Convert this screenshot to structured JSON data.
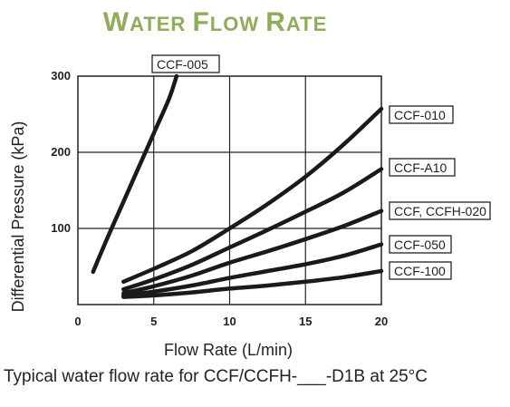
{
  "chart_data": {
    "type": "line",
    "title": "Water Flow Rate",
    "xlabel": "Flow Rate (L/min)",
    "ylabel": "Differential Pressure (kPa)",
    "xlim": [
      0,
      20
    ],
    "ylim": [
      0,
      300
    ],
    "x_ticks": [
      "0",
      "5",
      "10",
      "15",
      "20"
    ],
    "y_ticks": [
      "100",
      "200",
      "300"
    ],
    "grid": true,
    "series": [
      {
        "name": "CCF-005",
        "x": [
          1,
          2,
          3,
          4,
          5,
          6,
          6.5
        ],
        "y": [
          43,
          90,
          135,
          180,
          225,
          270,
          300
        ]
      },
      {
        "name": "CCF-010",
        "x": [
          3,
          5,
          7.5,
          10,
          12.5,
          15,
          17.5,
          20
        ],
        "y": [
          30,
          47,
          70,
          100,
          132,
          168,
          210,
          257
        ]
      },
      {
        "name": "CCF-A10",
        "x": [
          3,
          5,
          7.5,
          10,
          12.5,
          15,
          17.5,
          20
        ],
        "y": [
          20,
          33,
          52,
          75,
          98,
          122,
          147,
          178
        ]
      },
      {
        "name": "CCF, CCFH-020",
        "x": [
          3,
          5,
          7.5,
          10,
          12.5,
          15,
          17.5,
          20
        ],
        "y": [
          15,
          24,
          38,
          55,
          70,
          86,
          103,
          123
        ]
      },
      {
        "name": "CCF-050",
        "x": [
          3,
          5,
          7.5,
          10,
          12.5,
          15,
          17.5,
          20
        ],
        "y": [
          12,
          17,
          25,
          35,
          44,
          53,
          64,
          79
        ]
      },
      {
        "name": "CCF-100",
        "x": [
          3,
          5,
          7.5,
          10,
          12.5,
          15,
          17.5,
          20
        ],
        "y": [
          10,
          12,
          16,
          21,
          25,
          30,
          36,
          44
        ]
      }
    ]
  },
  "caption": "Typical water flow rate for CCF/CCFH-___-D1B at 25°C"
}
